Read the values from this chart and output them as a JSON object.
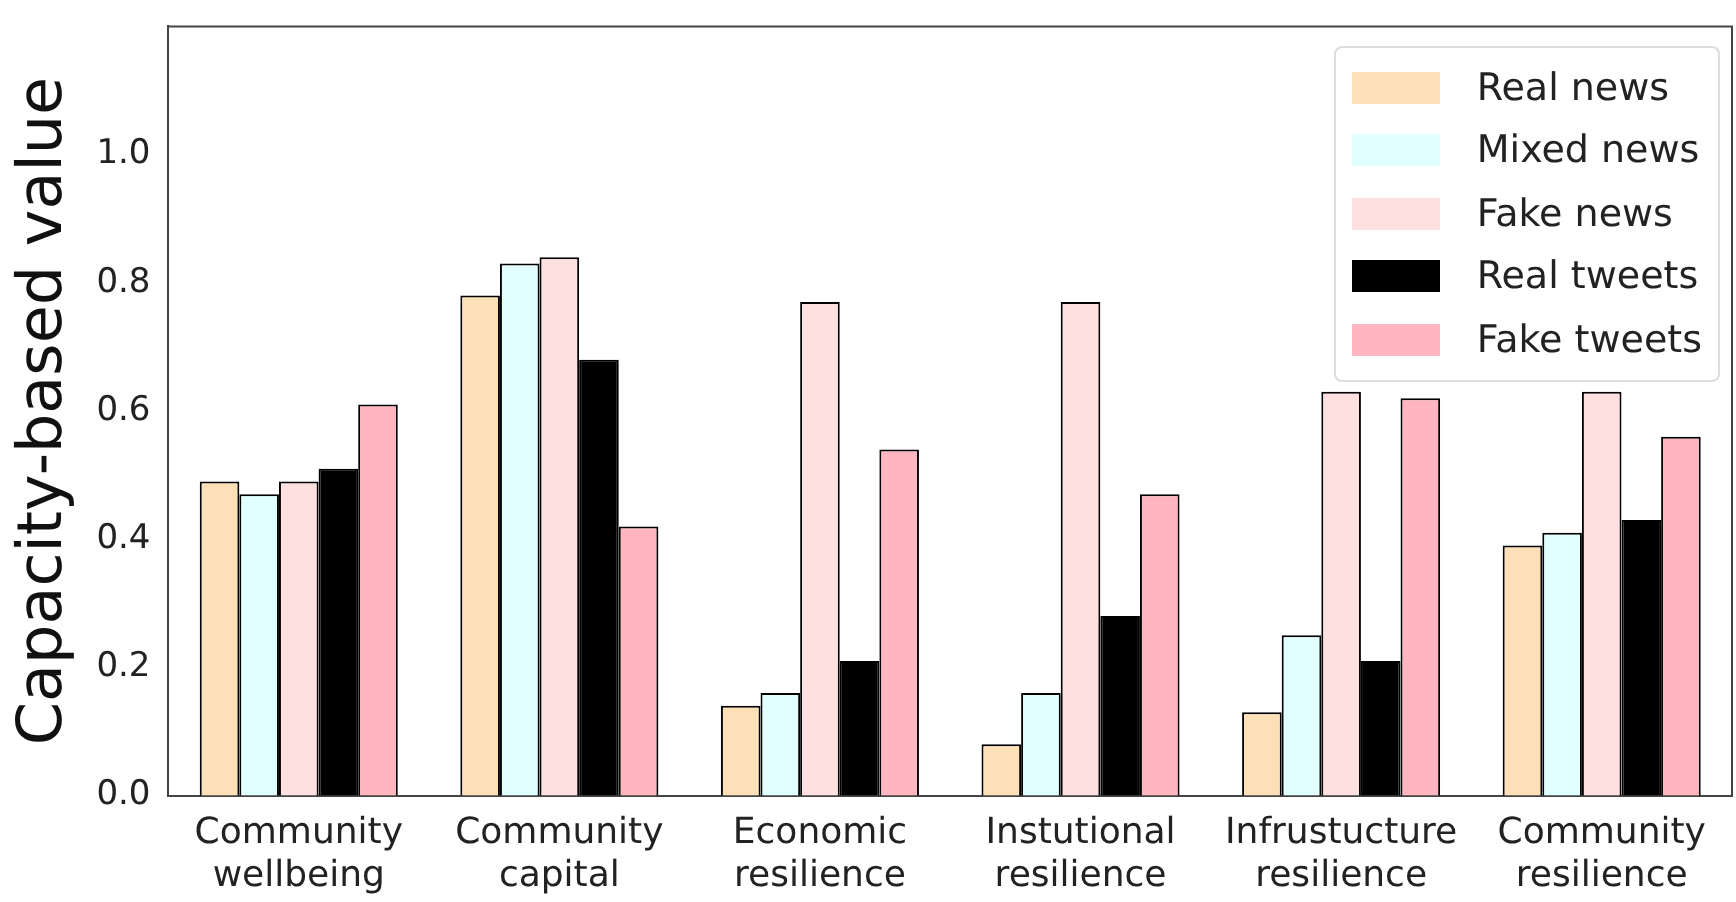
{
  "chart_data": {
    "type": "bar",
    "ylabel": "Capacity-based value",
    "categories": [
      "Community wellbeing",
      "Community capital",
      "Economic resilience",
      "Instutional resilience",
      "Infrustucture resilience",
      "Community resilience"
    ],
    "series": [
      {
        "name": "Real news",
        "color": "#fde0b8",
        "values": [
          0.49,
          0.78,
          0.14,
          0.08,
          0.13,
          0.39
        ]
      },
      {
        "name": "Mixed news",
        "color": "#e0ffff",
        "values": [
          0.47,
          0.83,
          0.16,
          0.16,
          0.25,
          0.41
        ]
      },
      {
        "name": "Fake news",
        "color": "#ffe0e0",
        "values": [
          0.49,
          0.84,
          0.77,
          0.77,
          0.63,
          0.63
        ]
      },
      {
        "name": "Real tweets",
        "color": "#000000",
        "values": [
          0.51,
          0.68,
          0.21,
          0.28,
          0.21,
          0.43
        ]
      },
      {
        "name": "Fake tweets",
        "color": "#ffb6c1",
        "values": [
          0.61,
          0.42,
          0.54,
          0.47,
          0.62,
          0.56
        ]
      }
    ],
    "ylim": [
      0,
      1.2
    ],
    "yticks": [
      {
        "value": 0,
        "label": "0.0"
      },
      {
        "value": 0.2,
        "label": "0.2"
      },
      {
        "value": 0.4,
        "label": "0.4"
      },
      {
        "value": 0.6,
        "label": "0.6"
      },
      {
        "value": 0.8,
        "label": "0.8"
      },
      {
        "value": 1,
        "label": "1.0"
      }
    ],
    "grid": false,
    "legend": "top right"
  }
}
